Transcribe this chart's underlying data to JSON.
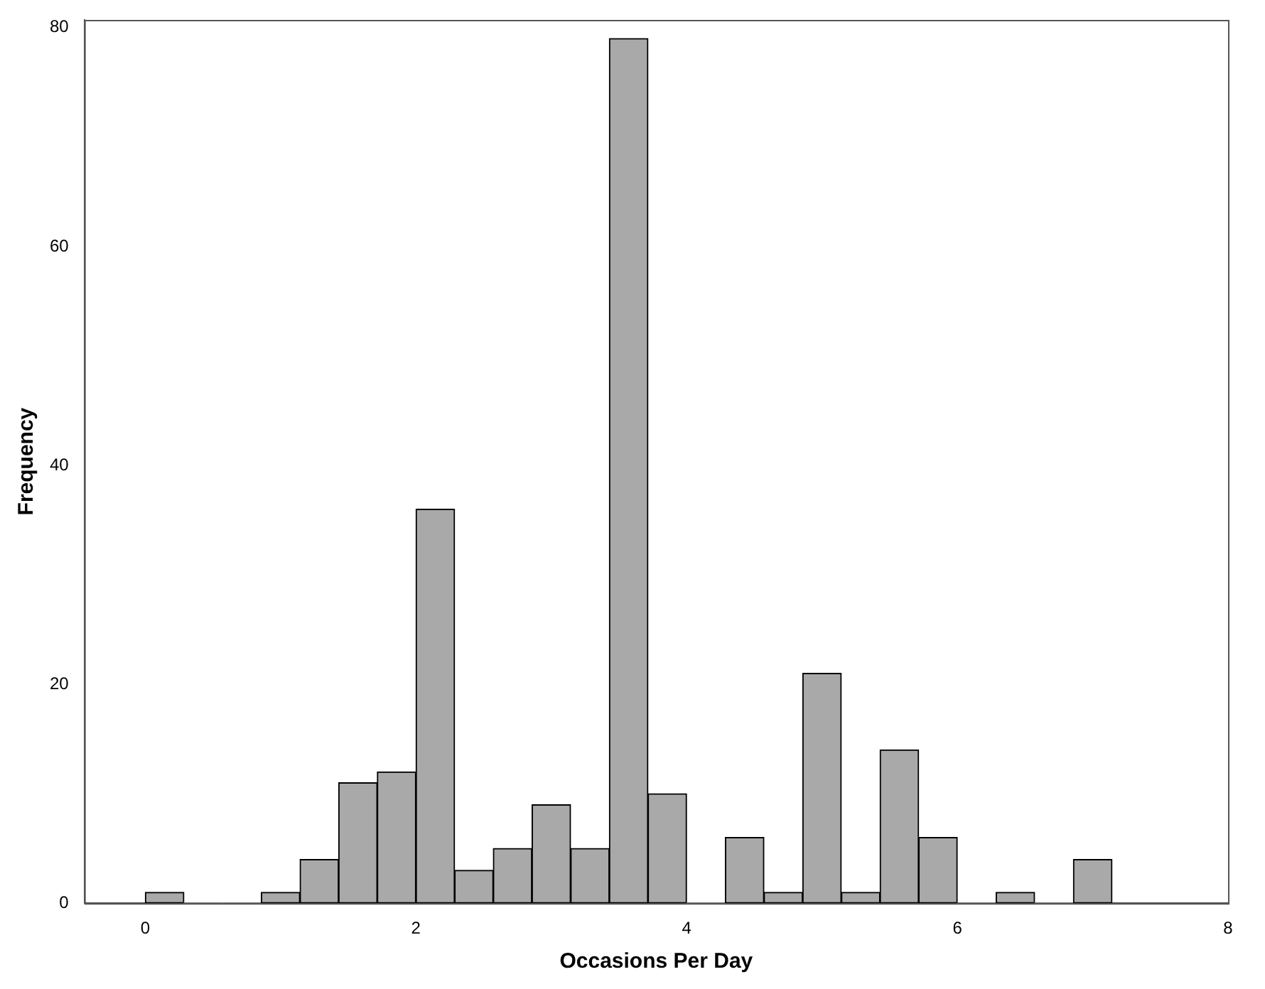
{
  "chart_data": {
    "type": "histogram",
    "xlabel": "Occasions Per Day",
    "ylabel": "Frequency",
    "bins": [
      0,
      0.286,
      0.571,
      0.857,
      1.143,
      1.429,
      1.714,
      2,
      2.286,
      2.571,
      2.857,
      3.143,
      3.429,
      3.714,
      4,
      4.286,
      4.571,
      4.857,
      5.143,
      5.429,
      5.714,
      6,
      6.286,
      6.571,
      6.857,
      7.143
    ],
    "values": [
      1,
      0,
      0,
      1,
      4,
      11,
      12,
      36,
      3,
      5,
      9,
      5,
      79,
      10,
      0,
      6,
      1,
      21,
      1,
      14,
      6,
      0,
      1,
      0,
      4
    ],
    "color": "#a9a9a9",
    "xlim": [
      -0.45,
      8
    ],
    "xticks": [
      0,
      2,
      4,
      6,
      8
    ],
    "ylim": [
      0,
      80.7
    ],
    "yticks": [
      0,
      20,
      40,
      60,
      80
    ],
    "grid": false
  }
}
